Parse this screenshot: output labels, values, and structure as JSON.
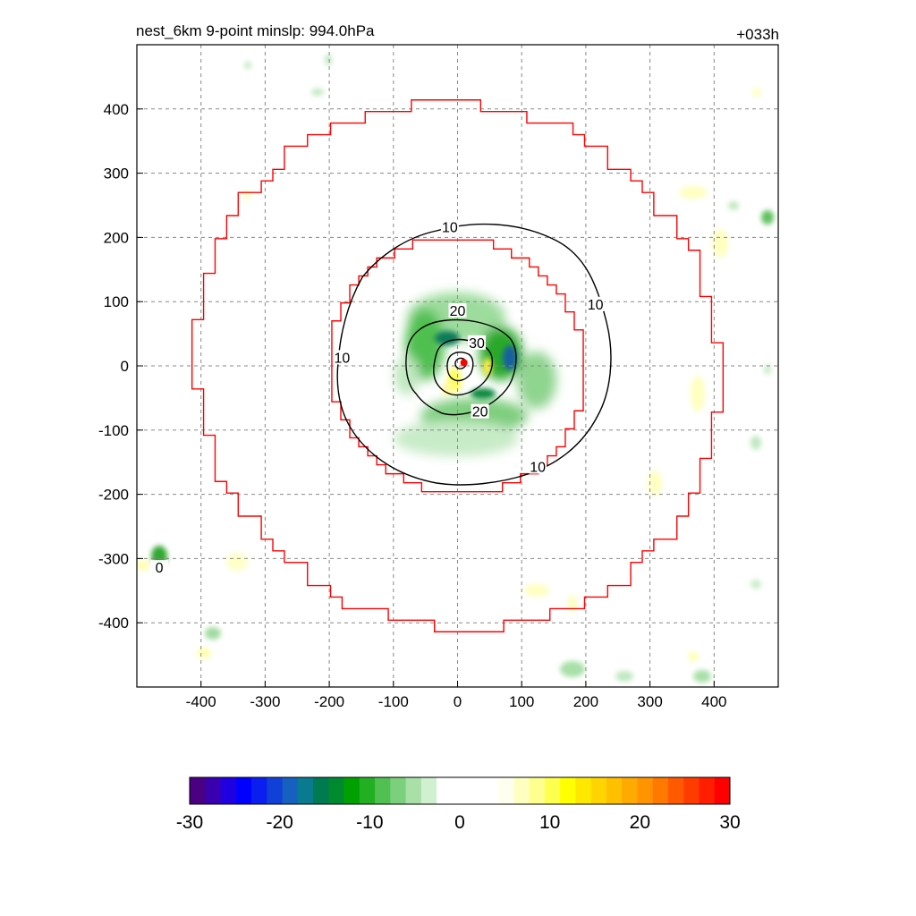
{
  "chart_data": {
    "type": "contour",
    "title_left": "nest_6km  9-point minslp: 994.0hPa",
    "title_right": "+033h",
    "xlim": [
      -500,
      500
    ],
    "ylim": [
      -500,
      500
    ],
    "x_ticks": [
      -400,
      -300,
      -200,
      -100,
      0,
      100,
      200,
      300,
      400
    ],
    "y_ticks": [
      400,
      300,
      200,
      100,
      0,
      -100,
      -200,
      -300,
      -400
    ],
    "grid": true,
    "colorbar": {
      "min": -30,
      "max": 30,
      "ticks": [
        -30,
        -20,
        -10,
        0,
        10,
        20,
        30
      ],
      "colors": [
        "#4b0082",
        "#3a00b0",
        "#2000e0",
        "#0000ff",
        "#0a1ef0",
        "#1040d8",
        "#1660c0",
        "#0a7a90",
        "#007a50",
        "#008a30",
        "#00a000",
        "#22b022",
        "#50c050",
        "#7ccf7c",
        "#a8e0a8",
        "#d0f0d0",
        "#ffffff",
        "#ffffff",
        "#ffffff",
        "#ffffff",
        "#fffff0",
        "#ffffc0",
        "#ffff90",
        "#ffff50",
        "#ffff00",
        "#ffe800",
        "#ffd400",
        "#ffc000",
        "#ffaa00",
        "#ff9400",
        "#ff7800",
        "#ff5a00",
        "#ff3c00",
        "#ff1e00",
        "#ff0000"
      ]
    },
    "inner_ring_radius_km": 200,
    "outer_ring_radius_km": 410,
    "contours": [
      {
        "level": "10",
        "labels": [
          {
            "text": "10",
            "x": -12,
            "y": 215
          },
          {
            "text": "10",
            "x": -180,
            "y": 12
          },
          {
            "text": "10",
            "x": 215,
            "y": 95
          },
          {
            "text": "10",
            "x": 125,
            "y": -158
          }
        ]
      },
      {
        "level": "20",
        "labels": [
          {
            "text": "20",
            "x": 0,
            "y": 85
          },
          {
            "text": "20",
            "x": 35,
            "y": -72
          }
        ]
      },
      {
        "level": "30",
        "labels": [
          {
            "text": "30",
            "x": 30,
            "y": 35
          }
        ]
      },
      {
        "level": "0",
        "labels": [
          {
            "text": "0",
            "x": -465,
            "y": -315
          }
        ]
      }
    ],
    "center": {
      "x": 10,
      "y": 5
    }
  }
}
